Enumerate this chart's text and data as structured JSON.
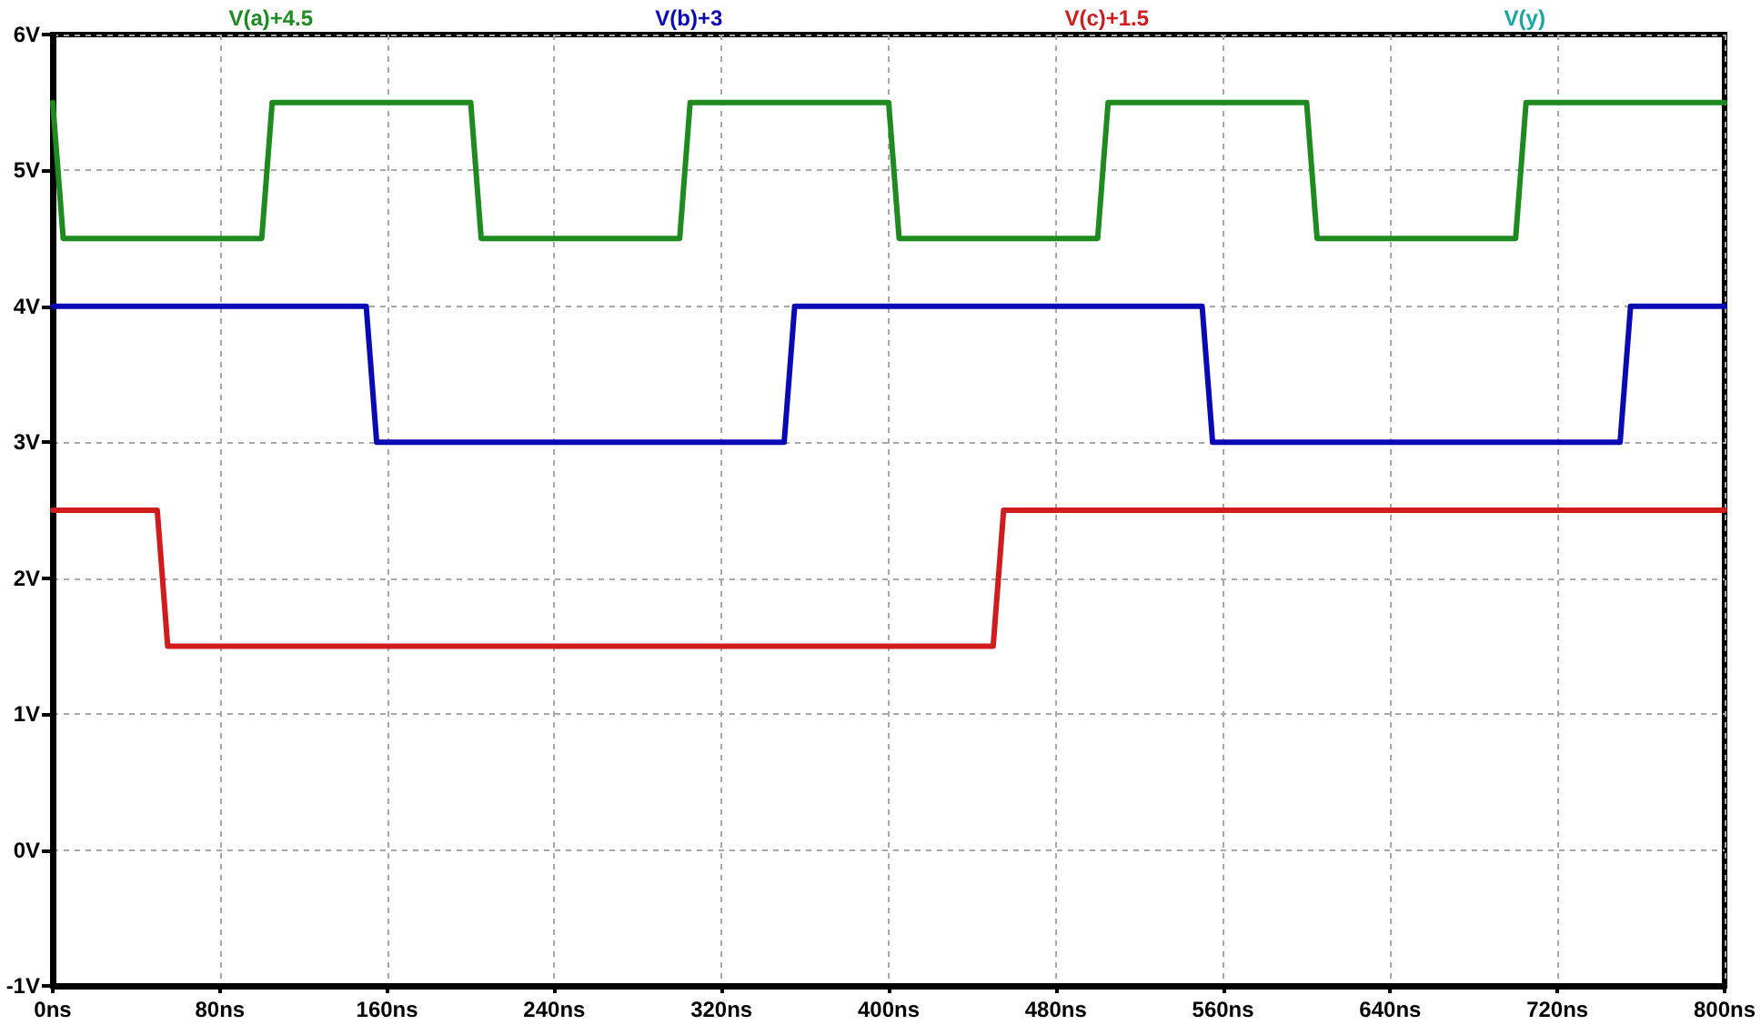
{
  "chart_data": {
    "type": "line",
    "series": [
      {
        "name": "V(a)+4.5",
        "color": "#1f8a1f",
        "x": [
          0,
          5,
          100,
          105,
          200,
          205,
          300,
          305,
          400,
          405,
          500,
          505,
          600,
          605,
          700,
          705,
          800
        ],
        "values": [
          5.5,
          4.5,
          4.5,
          5.5,
          5.5,
          4.5,
          4.5,
          5.5,
          5.5,
          4.5,
          4.5,
          5.5,
          5.5,
          4.5,
          4.5,
          5.5,
          5.5
        ]
      },
      {
        "name": "V(b)+3",
        "color": "#0a0ab4",
        "x": [
          0,
          150,
          155,
          350,
          355,
          550,
          555,
          750,
          755,
          800
        ],
        "values": [
          4,
          4,
          3,
          3,
          4,
          4,
          3,
          3,
          4,
          4
        ]
      },
      {
        "name": "V(c)+1.5",
        "color": "#d01c1c",
        "x": [
          0,
          50,
          55,
          450,
          455,
          800
        ],
        "values": [
          2.5,
          2.5,
          1.5,
          1.5,
          2.5,
          2.5
        ]
      },
      {
        "name": "V(y)",
        "color": "#1aa5a5"
      }
    ],
    "xlim": [
      0,
      800
    ],
    "xticks": [
      {
        "value": 0,
        "label": "0ns"
      },
      {
        "value": 80,
        "label": "80ns"
      },
      {
        "value": 160,
        "label": "160ns"
      },
      {
        "value": 240,
        "label": "240ns"
      },
      {
        "value": 320,
        "label": "320ns"
      },
      {
        "value": 400,
        "label": "400ns"
      },
      {
        "value": 480,
        "label": "480ns"
      },
      {
        "value": 560,
        "label": "560ns"
      },
      {
        "value": 640,
        "label": "640ns"
      },
      {
        "value": 720,
        "label": "720ns"
      },
      {
        "value": 800,
        "label": "800ns"
      }
    ],
    "ylim": [
      -1,
      6
    ],
    "yticks": [
      {
        "value": -1,
        "label": "-1V"
      },
      {
        "value": 0,
        "label": "0V"
      },
      {
        "value": 1,
        "label": "1V"
      },
      {
        "value": 2,
        "label": "2V"
      },
      {
        "value": 3,
        "label": "3V"
      },
      {
        "value": 4,
        "label": "4V"
      },
      {
        "value": 5,
        "label": "5V"
      },
      {
        "value": 6,
        "label": "6V"
      }
    ],
    "grid": true,
    "legend": "top",
    "marker": "none",
    "line_style": "solid"
  }
}
